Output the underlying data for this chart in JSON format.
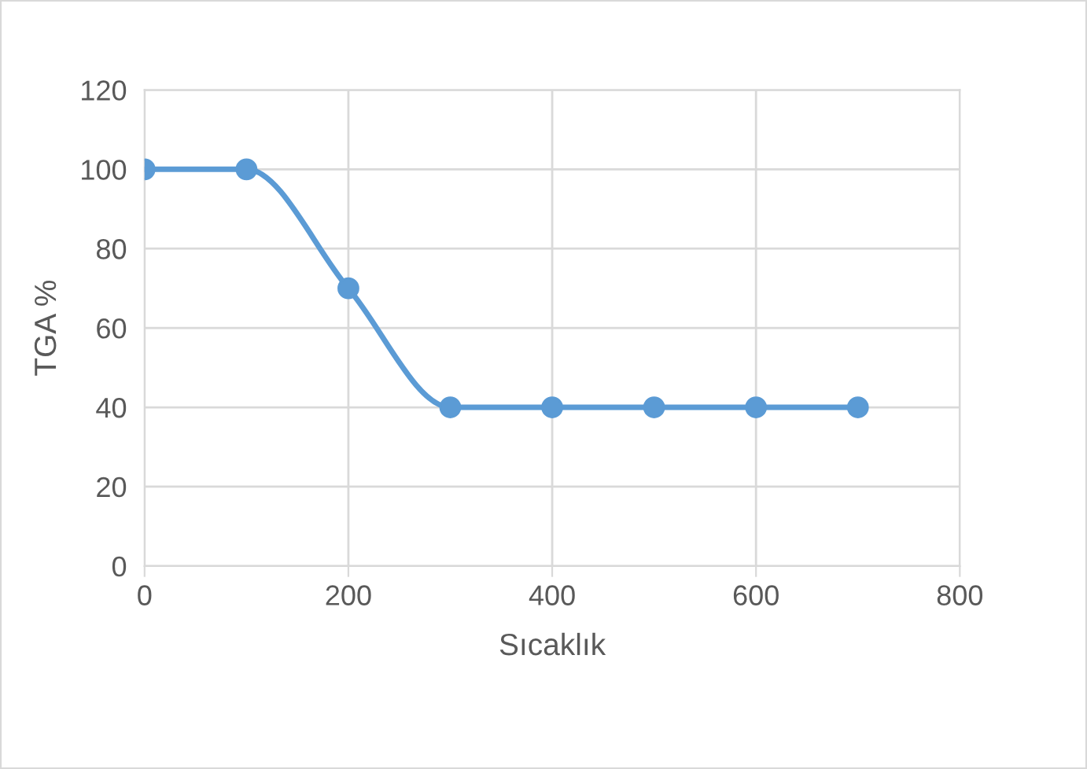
{
  "chart_data": {
    "type": "line",
    "xlabel": "Sıcaklık",
    "ylabel": "TGA %",
    "x": [
      0,
      100,
      200,
      300,
      400,
      500,
      600,
      700
    ],
    "series": [
      {
        "color": "#5b9bd5",
        "values": [
          100,
          100,
          70,
          40,
          40,
          40,
          40,
          40
        ]
      }
    ],
    "xlim": [
      0,
      800
    ],
    "xticks": [
      0,
      200,
      400,
      600,
      800
    ],
    "ylim": [
      0,
      120
    ],
    "yticks": [
      0,
      20,
      40,
      60,
      80,
      100,
      120
    ],
    "grid": true,
    "marker": "circle",
    "line_style": "solid",
    "legend": false
  }
}
